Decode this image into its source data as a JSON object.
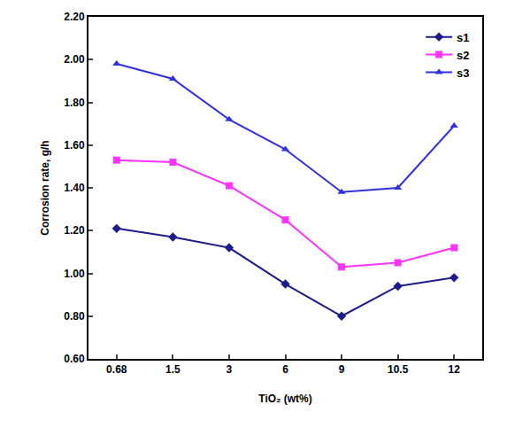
{
  "chart_data": {
    "type": "line",
    "x_label": "TiO₂ (wt%)",
    "y_label": "Corrosion rate, g/h",
    "categories": [
      "0.68",
      "1.5",
      "3",
      "6",
      "9",
      "10.5",
      "12"
    ],
    "series": [
      {
        "name": "s1",
        "color": "#1c1c8c",
        "marker": "diamond",
        "line_style": "solid",
        "values": [
          1.21,
          1.17,
          1.12,
          0.95,
          0.8,
          0.94,
          0.98
        ]
      },
      {
        "name": "s2",
        "color": "#ff33ff",
        "marker": "square",
        "line_style": "solid",
        "values": [
          1.53,
          1.52,
          1.41,
          1.25,
          1.03,
          1.05,
          1.12
        ]
      },
      {
        "name": "s3",
        "color": "#3030e0",
        "marker": "triangle-up",
        "line_style": "solid",
        "values": [
          1.98,
          1.91,
          1.72,
          1.58,
          1.38,
          1.4,
          1.69
        ]
      }
    ],
    "ylim": [
      0.6,
      2.2
    ],
    "yticks": [
      {
        "value": 0.6,
        "label": "0.60"
      },
      {
        "value": 0.8,
        "label": "0.80"
      },
      {
        "value": 1.0,
        "label": "1.00"
      },
      {
        "value": 1.2,
        "label": "1.20"
      },
      {
        "value": 1.4,
        "label": "1.40"
      },
      {
        "value": 1.6,
        "label": "1.60"
      },
      {
        "value": 1.8,
        "label": "1.80"
      },
      {
        "value": 2.0,
        "label": "2.00"
      },
      {
        "value": 2.2,
        "label": "2.20"
      }
    ],
    "grid": false,
    "legend": "top-right"
  }
}
